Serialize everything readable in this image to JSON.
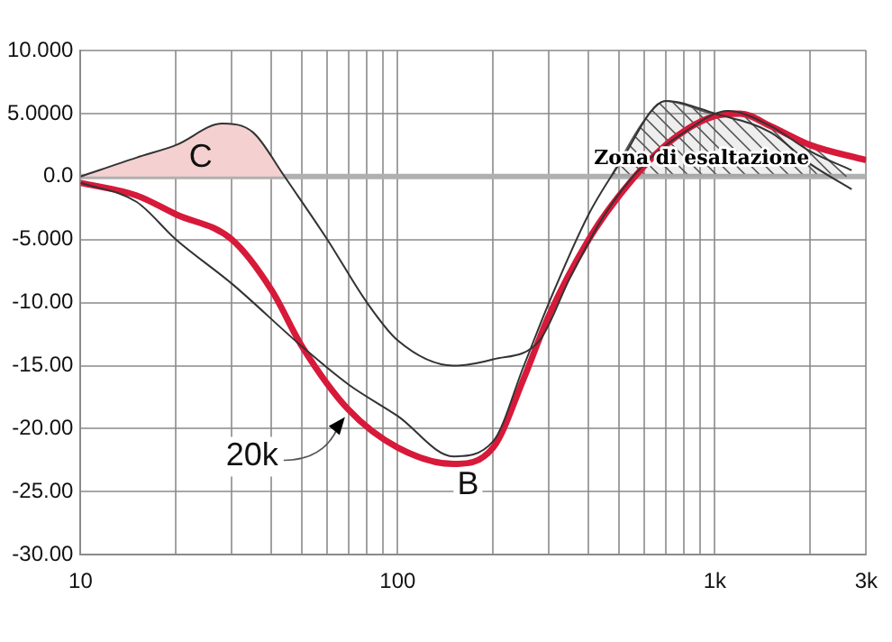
{
  "chart_data": {
    "type": "line",
    "x": [
      44,
      60,
      80,
      100,
      150,
      200,
      280,
      350,
      450,
      600,
      800,
      1100,
      1500,
      2000,
      2700
    ],
    "series": [
      {
        "name": "C",
        "type": "area",
        "color": "#f4d0d0",
        "x": [
          10,
          15,
          20,
          28,
          35,
          44
        ],
        "values": [
          0,
          1.5,
          2.5,
          4.2,
          3.5,
          0
        ]
      },
      {
        "color": "#333333",
        "values": [
          0,
          -5,
          -10,
          -13,
          -15,
          -14.5,
          -13,
          -8,
          -3,
          1,
          3.5,
          5.2,
          4,
          2,
          0.5
        ]
      },
      {
        "color": "#333333",
        "x": [
          10,
          15,
          20,
          30,
          50,
          70,
          100,
          150,
          200,
          250,
          300,
          400,
          500,
          700,
          1000,
          1500,
          2000,
          2700
        ],
        "values": [
          -0.5,
          -2,
          -5,
          -8.5,
          -13.5,
          -16.5,
          -19,
          -22.2,
          -21,
          -15,
          -10,
          -3,
          1,
          6,
          5,
          3.5,
          1,
          -1
        ]
      },
      {
        "color": "#d7193a",
        "x": [
          10,
          15,
          20,
          30,
          40,
          50,
          70,
          100,
          150,
          200,
          250,
          300,
          400,
          500,
          700,
          1000,
          1200,
          1500,
          2000,
          3000
        ],
        "values": [
          -0.5,
          -1.5,
          -3,
          -5,
          -9,
          -13.5,
          -18.5,
          -21.5,
          -22.8,
          -21.5,
          -16,
          -11,
          -5,
          -1.5,
          2.5,
          4.8,
          5,
          4,
          2.5,
          1.3
        ]
      },
      {
        "name": "Zona di esaltazione",
        "type": "area",
        "color": "#555555",
        "x": [
          470,
          600,
          700,
          800,
          1000,
          1200,
          1500,
          2000,
          2600
        ],
        "values": [
          0,
          4.5,
          6,
          5.7,
          5,
          5,
          4,
          2.5,
          0
        ]
      }
    ],
    "log": "x",
    "xlim": [
      10,
      3000
    ],
    "xticks": [
      10,
      {
        "value": 20,
        "label": null
      },
      {
        "value": 30,
        "label": null
      },
      {
        "value": 40,
        "label": null
      },
      {
        "value": 50,
        "label": null
      },
      {
        "value": 60,
        "label": null
      },
      {
        "value": 70,
        "label": null
      },
      {
        "value": 80,
        "label": null
      },
      {
        "value": 90,
        "label": null
      },
      100,
      {
        "value": 200,
        "label": null
      },
      {
        "value": 300,
        "label": null
      },
      {
        "value": 400,
        "label": null
      },
      {
        "value": 500,
        "label": null
      },
      {
        "value": 600,
        "label": null
      },
      {
        "value": 700,
        "label": null
      },
      {
        "value": 800,
        "label": null
      },
      {
        "value": 900,
        "label": null
      },
      {
        "value": 1000,
        "label": "1k"
      },
      {
        "value": 2000,
        "label": null
      },
      {
        "value": 3000,
        "label": "3k"
      }
    ],
    "ylim": [
      -30,
      10
    ],
    "yticks": [
      {
        "value": 10,
        "label": "10.000"
      },
      {
        "value": 5,
        "label": "5.0000"
      },
      {
        "value": 0,
        "label": "0.0"
      },
      {
        "value": -5,
        "label": "-5.000"
      },
      {
        "value": -10,
        "label": "-10.00"
      },
      {
        "value": -15,
        "label": "-15.00"
      },
      {
        "value": -20,
        "label": "-20.00"
      },
      {
        "value": -25,
        "label": "-25.00"
      },
      {
        "value": -30,
        "label": "-30.00"
      }
    ],
    "grid": true,
    "legend": false,
    "marker": "none",
    "line_style": "solid",
    "ref_lines": [
      {
        "axis": "y",
        "value": 0,
        "color": "#b0b0b0"
      }
    ],
    "annotations": [
      {
        "text": "B",
        "x": 150,
        "y": -22.8
      },
      {
        "text": "20k",
        "x": 70,
        "y": -18.5
      }
    ]
  }
}
